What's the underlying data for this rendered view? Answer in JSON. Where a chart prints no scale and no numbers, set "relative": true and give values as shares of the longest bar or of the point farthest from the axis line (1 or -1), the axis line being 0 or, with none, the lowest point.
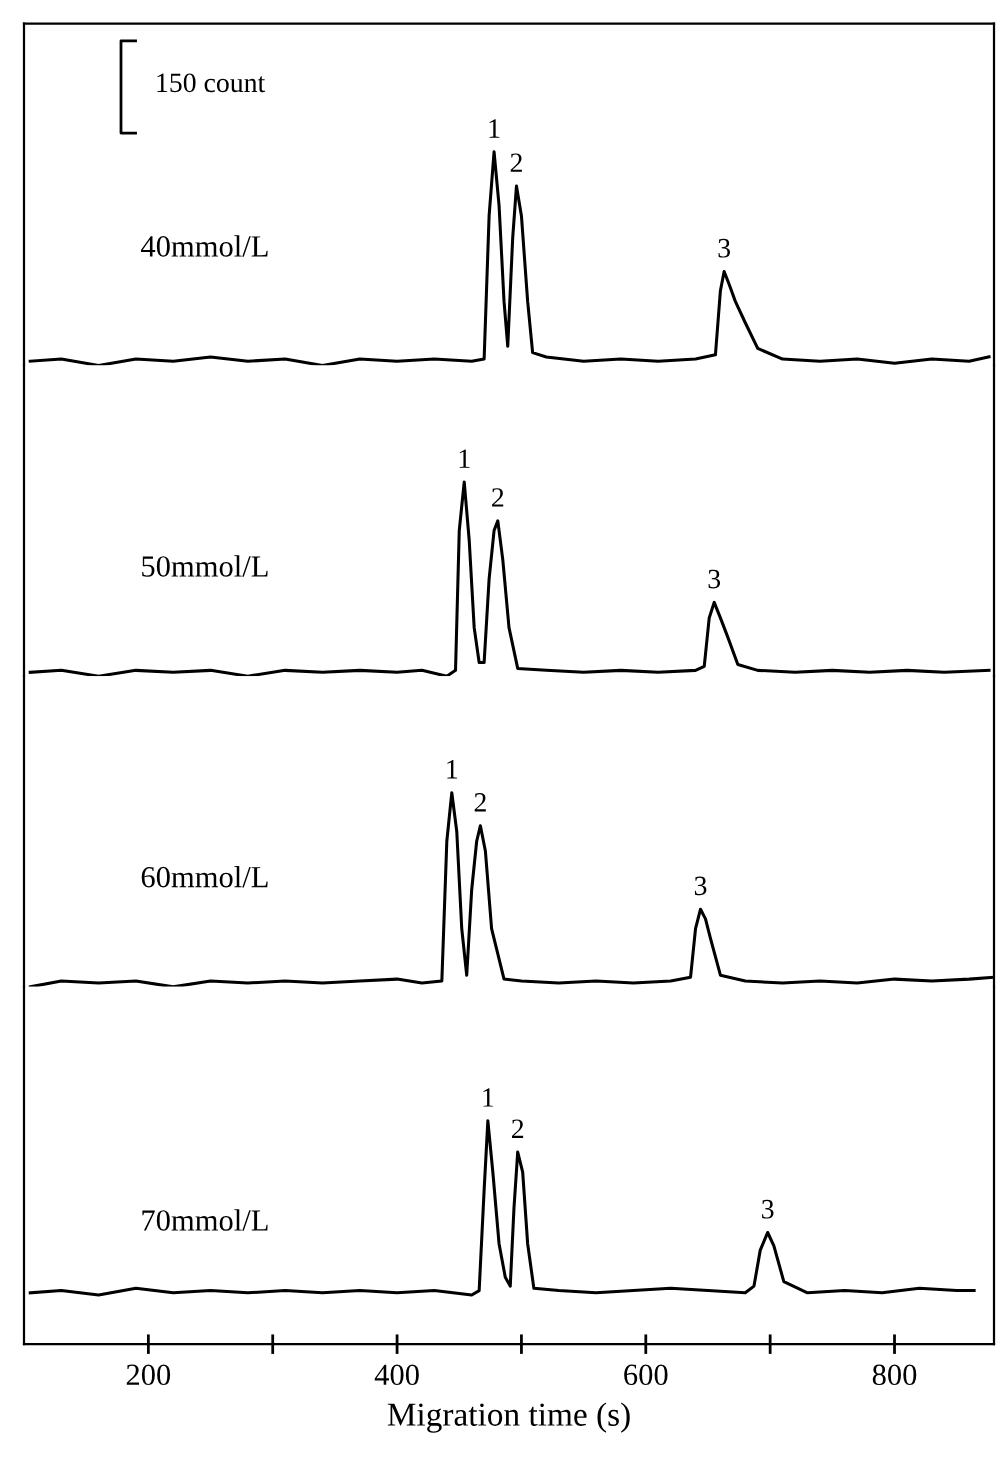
{
  "chart_data": [
    {
      "type": "line",
      "relative": true,
      "xlim": [
        100,
        880
      ],
      "tick_labels": false,
      "annotations": [
        "150 count",
        {
          "text": "1",
          "x": 478,
          "y": 1
        },
        {
          "text": "2",
          "x": 496,
          "y": 0.84
        },
        {
          "text": "3",
          "x": 663,
          "y": 0.44
        }
      ],
      "series": [
        {
          "name": "40mmol/L",
          "color": "#000000",
          "x": [
            105,
            130,
            160,
            190,
            220,
            250,
            280,
            310,
            340,
            370,
            400,
            430,
            460,
            470,
            474,
            478,
            482,
            486,
            489,
            493,
            496,
            500,
            505,
            509,
            520,
            550,
            580,
            610,
            640,
            656,
            660,
            663,
            667,
            672,
            680,
            690,
            710,
            740,
            770,
            800,
            830,
            860,
            876
          ],
          "values": [
            0.02,
            0.03,
            0,
            0.03,
            0.02,
            0.04,
            0.02,
            0.03,
            0,
            0.03,
            0.02,
            0.03,
            0.02,
            0.03,
            0.7,
            1,
            0.75,
            0.3,
            0.09,
            0.6,
            0.84,
            0.7,
            0.3,
            0.06,
            0.04,
            0.02,
            0.03,
            0.02,
            0.03,
            0.05,
            0.35,
            0.44,
            0.38,
            0.3,
            0.2,
            0.08,
            0.03,
            0.02,
            0.03,
            0.01,
            0.03,
            0.02,
            0.04
          ]
        }
      ]
    },
    {
      "type": "line",
      "relative": true,
      "xlim": [
        100,
        880
      ],
      "tick_labels": false,
      "annotations": [
        {
          "text": "1",
          "x": 454,
          "y": 1
        },
        {
          "text": "2",
          "x": 481,
          "y": 0.8
        },
        {
          "text": "3",
          "x": 655,
          "y": 0.38
        }
      ],
      "series": [
        {
          "name": "50mmol/L",
          "color": "#000000",
          "x": [
            105,
            130,
            160,
            190,
            220,
            250,
            280,
            310,
            340,
            370,
            400,
            420,
            440,
            447,
            450,
            454,
            458,
            462,
            466,
            470,
            474,
            478,
            481,
            485,
            490,
            497,
            520,
            550,
            580,
            610,
            640,
            647,
            651,
            655,
            660,
            666,
            674,
            690,
            720,
            750,
            780,
            810,
            840,
            876
          ],
          "values": [
            0.02,
            0.03,
            0,
            0.03,
            0.02,
            0.03,
            0,
            0.03,
            0.02,
            0.03,
            0.02,
            0.03,
            0,
            0.03,
            0.75,
            1,
            0.7,
            0.25,
            0.07,
            0.07,
            0.5,
            0.75,
            0.8,
            0.6,
            0.25,
            0.04,
            0.03,
            0.02,
            0.03,
            0.02,
            0.03,
            0.05,
            0.3,
            0.38,
            0.3,
            0.2,
            0.06,
            0.03,
            0.02,
            0.03,
            0.02,
            0.03,
            0.02,
            0.03
          ]
        }
      ]
    },
    {
      "type": "line",
      "relative": true,
      "xlim": [
        100,
        880
      ],
      "tick_labels": false,
      "annotations": [
        {
          "text": "1",
          "x": 444,
          "y": 1
        },
        {
          "text": "2",
          "x": 467,
          "y": 0.83
        },
        {
          "text": "3",
          "x": 644,
          "y": 0.4
        }
      ],
      "series": [
        {
          "name": "60mmol/L",
          "color": "#000000",
          "x": [
            105,
            130,
            160,
            190,
            220,
            250,
            280,
            310,
            340,
            370,
            400,
            420,
            436,
            440,
            444,
            448,
            452,
            456,
            460,
            464,
            467,
            471,
            476,
            486,
            500,
            530,
            560,
            590,
            620,
            636,
            640,
            644,
            648,
            652,
            660,
            680,
            710,
            740,
            770,
            800,
            830,
            860,
            880
          ],
          "values": [
            0,
            0.03,
            0.02,
            0.03,
            0,
            0.03,
            0.02,
            0.03,
            0.02,
            0.03,
            0.04,
            0.02,
            0.03,
            0.75,
            1,
            0.8,
            0.3,
            0.06,
            0.5,
            0.75,
            0.83,
            0.7,
            0.3,
            0.04,
            0.03,
            0.02,
            0.03,
            0.02,
            0.03,
            0.05,
            0.3,
            0.4,
            0.35,
            0.25,
            0.06,
            0.03,
            0.02,
            0.03,
            0.02,
            0.04,
            0.03,
            0.04,
            0.05
          ]
        }
      ]
    },
    {
      "type": "line",
      "relative": true,
      "xlim": [
        100,
        880
      ],
      "xticks": [
        200,
        {
          "value": 300,
          "label": null
        },
        400,
        {
          "value": 500,
          "label": null
        },
        600,
        {
          "value": 700,
          "label": null
        },
        800
      ],
      "tick_labels": "x",
      "xlabel": "Migration time (s)",
      "annotations": [
        {
          "text": "1",
          "x": 473,
          "y": 1
        },
        {
          "text": "2",
          "x": 497,
          "y": 0.86
        },
        {
          "text": "3",
          "x": 698,
          "y": 0.5
        }
      ],
      "series": [
        {
          "name": "70mmol/L",
          "color": "#000000",
          "x": [
            105,
            130,
            160,
            190,
            220,
            250,
            280,
            310,
            340,
            370,
            400,
            430,
            460,
            466,
            470,
            473,
            477,
            482,
            487,
            491,
            494,
            497,
            501,
            505,
            510,
            530,
            560,
            590,
            620,
            650,
            680,
            687,
            692,
            698,
            703,
            711,
            730,
            760,
            790,
            820,
            850,
            864
          ],
          "values": [
            0.23,
            0.24,
            0.22,
            0.25,
            0.23,
            0.24,
            0.23,
            0.24,
            0.23,
            0.24,
            0.23,
            0.24,
            0.22,
            0.24,
            0.69,
            1,
            0.77,
            0.45,
            0.3,
            0.26,
            0.61,
            0.86,
            0.77,
            0.45,
            0.25,
            0.24,
            0.23,
            0.24,
            0.25,
            0.24,
            0.23,
            0.26,
            0.42,
            0.5,
            0.44,
            0.28,
            0.23,
            0.24,
            0.23,
            0.25,
            0.24,
            0.24
          ]
        }
      ]
    }
  ]
}
